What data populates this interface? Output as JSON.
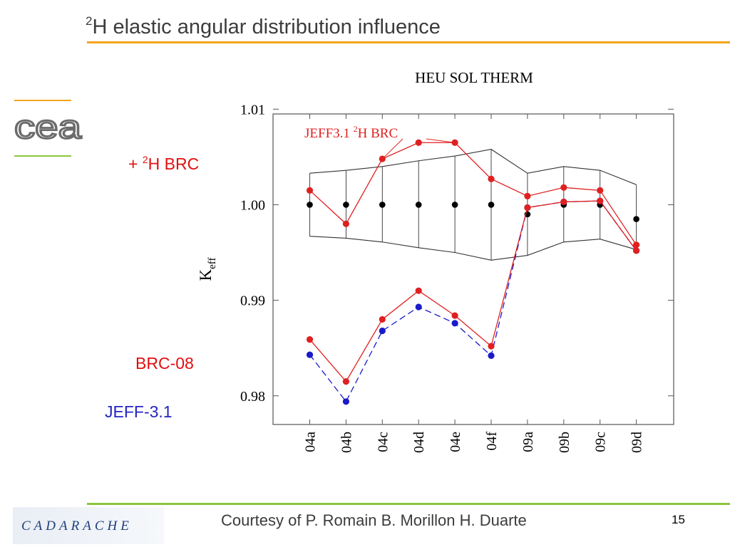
{
  "slide": {
    "title_sup": "2",
    "title_text": "H elastic angular distribution influence",
    "labels": {
      "brc_h2_prefix": "+ ",
      "brc_h2_sup": "2",
      "brc_h2_text": "H BRC",
      "brc08": "BRC-08",
      "jeff31": "JEFF-3.1"
    },
    "logo_text": "cea",
    "cadarache_text": "CADARACHE",
    "footer": "Courtesy of P. Romain B. Morillon  H. Duarte",
    "page_number": "15"
  },
  "colors": {
    "title_rule": "#f2a51a",
    "footer_rule": "#8cc63e",
    "brc_series": "#e02020",
    "jeff_series": "#1a1acc",
    "experiment": "#000000",
    "label_red": "#e01010",
    "label_blue": "#2424c0"
  },
  "chart_data": {
    "type": "line",
    "title": "HEU SOL THERM",
    "ylabel": "K",
    "ylabel_sub": "eff",
    "categories": [
      "04a",
      "04b",
      "04c",
      "04d",
      "04e",
      "04f",
      "09a",
      "09b",
      "09c",
      "09d"
    ],
    "ylim": [
      0.977,
      1.0095
    ],
    "yticks": [
      0.98,
      0.99,
      1.0,
      1.01
    ],
    "ytick_labels": [
      "0.98",
      "0.99",
      "1.00",
      "1.01"
    ],
    "annotation": {
      "text": "JEFF3.1 ",
      "sup": "2",
      "text2": "H BRC"
    },
    "experiment": {
      "values": [
        1.0,
        1.0,
        1.0,
        1.0,
        1.0,
        1.0,
        0.999,
        1.0,
        1.0,
        0.9985
      ],
      "upper": [
        1.0033,
        1.0036,
        1.004,
        1.0046,
        1.0051,
        1.0058,
        1.0033,
        1.004,
        1.0036,
        1.0021
      ],
      "lower": [
        0.9967,
        0.9965,
        0.9961,
        0.9955,
        0.995,
        0.9942,
        0.9947,
        0.9961,
        0.9964,
        0.9953
      ]
    },
    "series": [
      {
        "key": "brc",
        "values": [
          1.0015,
          0.998,
          1.0048,
          1.0065,
          1.0065,
          1.0027,
          1.0009,
          1.0018,
          1.0015,
          0.9958
        ],
        "err": [
          0.0003,
          0.0003,
          0.0003,
          0.0003,
          0.0003,
          0.0003,
          0.0003,
          0.0003,
          0.0003,
          0.0003
        ]
      },
      {
        "key": "brc08",
        "values": [
          0.9859,
          0.9815,
          0.988,
          0.991,
          0.9884,
          0.9852,
          0.9997,
          1.0003,
          1.0004,
          0.9952
        ],
        "err": [
          0.0003,
          0.0003,
          0.0003,
          0.0003,
          0.0003,
          0.0003,
          0.0003,
          0.0003,
          0.0003,
          0.0003
        ]
      },
      {
        "key": "jeff31",
        "values": [
          0.9843,
          0.9794,
          0.9868,
          0.9893,
          0.9876,
          0.9842,
          0.9997,
          1.0003,
          1.0004,
          0.9952
        ],
        "err": [
          0.0003,
          0.0003,
          0.0003,
          0.0003,
          0.0003,
          0.0003,
          0.0003,
          0.0003,
          0.0003,
          0.0003
        ]
      }
    ]
  }
}
